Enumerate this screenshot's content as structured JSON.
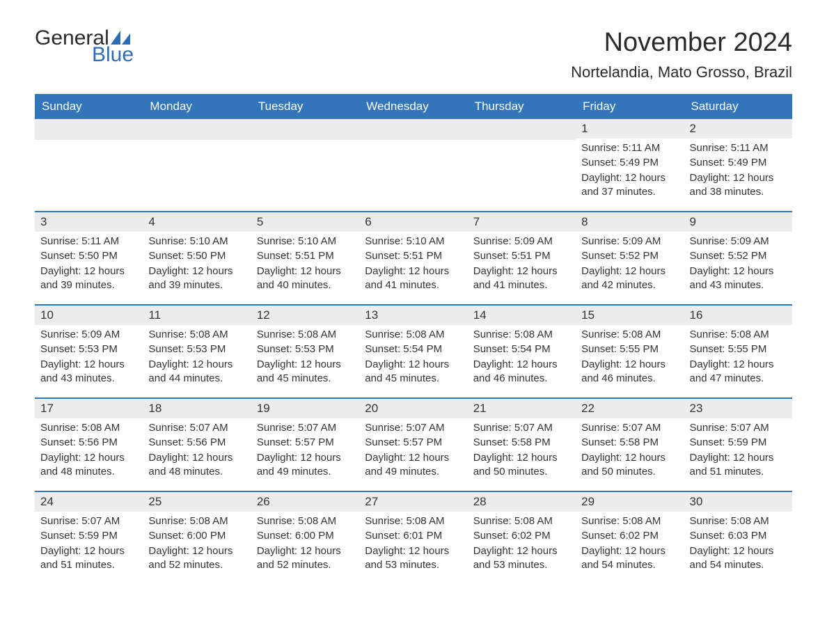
{
  "logo": {
    "text1": "General",
    "text2": "Blue"
  },
  "title": "November 2024",
  "location": "Nortelandia, Mato Grosso, Brazil",
  "colors": {
    "header_bg": "#3275bb",
    "header_text": "#ffffff",
    "daynum_bg": "#ececec",
    "border": "#3275bb",
    "logo_blue": "#2c6eb5",
    "text": "#333333",
    "background": "#ffffff"
  },
  "typography": {
    "title_fontsize": 38,
    "location_fontsize": 22,
    "dayheader_fontsize": 17,
    "daynum_fontsize": 17,
    "details_fontsize": 15,
    "logo_fontsize": 30
  },
  "day_headers": [
    "Sunday",
    "Monday",
    "Tuesday",
    "Wednesday",
    "Thursday",
    "Friday",
    "Saturday"
  ],
  "weeks": [
    [
      null,
      null,
      null,
      null,
      null,
      {
        "day": "1",
        "sunrise": "Sunrise: 5:11 AM",
        "sunset": "Sunset: 5:49 PM",
        "daylight": "Daylight: 12 hours and 37 minutes."
      },
      {
        "day": "2",
        "sunrise": "Sunrise: 5:11 AM",
        "sunset": "Sunset: 5:49 PM",
        "daylight": "Daylight: 12 hours and 38 minutes."
      }
    ],
    [
      {
        "day": "3",
        "sunrise": "Sunrise: 5:11 AM",
        "sunset": "Sunset: 5:50 PM",
        "daylight": "Daylight: 12 hours and 39 minutes."
      },
      {
        "day": "4",
        "sunrise": "Sunrise: 5:10 AM",
        "sunset": "Sunset: 5:50 PM",
        "daylight": "Daylight: 12 hours and 39 minutes."
      },
      {
        "day": "5",
        "sunrise": "Sunrise: 5:10 AM",
        "sunset": "Sunset: 5:51 PM",
        "daylight": "Daylight: 12 hours and 40 minutes."
      },
      {
        "day": "6",
        "sunrise": "Sunrise: 5:10 AM",
        "sunset": "Sunset: 5:51 PM",
        "daylight": "Daylight: 12 hours and 41 minutes."
      },
      {
        "day": "7",
        "sunrise": "Sunrise: 5:09 AM",
        "sunset": "Sunset: 5:51 PM",
        "daylight": "Daylight: 12 hours and 41 minutes."
      },
      {
        "day": "8",
        "sunrise": "Sunrise: 5:09 AM",
        "sunset": "Sunset: 5:52 PM",
        "daylight": "Daylight: 12 hours and 42 minutes."
      },
      {
        "day": "9",
        "sunrise": "Sunrise: 5:09 AM",
        "sunset": "Sunset: 5:52 PM",
        "daylight": "Daylight: 12 hours and 43 minutes."
      }
    ],
    [
      {
        "day": "10",
        "sunrise": "Sunrise: 5:09 AM",
        "sunset": "Sunset: 5:53 PM",
        "daylight": "Daylight: 12 hours and 43 minutes."
      },
      {
        "day": "11",
        "sunrise": "Sunrise: 5:08 AM",
        "sunset": "Sunset: 5:53 PM",
        "daylight": "Daylight: 12 hours and 44 minutes."
      },
      {
        "day": "12",
        "sunrise": "Sunrise: 5:08 AM",
        "sunset": "Sunset: 5:53 PM",
        "daylight": "Daylight: 12 hours and 45 minutes."
      },
      {
        "day": "13",
        "sunrise": "Sunrise: 5:08 AM",
        "sunset": "Sunset: 5:54 PM",
        "daylight": "Daylight: 12 hours and 45 minutes."
      },
      {
        "day": "14",
        "sunrise": "Sunrise: 5:08 AM",
        "sunset": "Sunset: 5:54 PM",
        "daylight": "Daylight: 12 hours and 46 minutes."
      },
      {
        "day": "15",
        "sunrise": "Sunrise: 5:08 AM",
        "sunset": "Sunset: 5:55 PM",
        "daylight": "Daylight: 12 hours and 46 minutes."
      },
      {
        "day": "16",
        "sunrise": "Sunrise: 5:08 AM",
        "sunset": "Sunset: 5:55 PM",
        "daylight": "Daylight: 12 hours and 47 minutes."
      }
    ],
    [
      {
        "day": "17",
        "sunrise": "Sunrise: 5:08 AM",
        "sunset": "Sunset: 5:56 PM",
        "daylight": "Daylight: 12 hours and 48 minutes."
      },
      {
        "day": "18",
        "sunrise": "Sunrise: 5:07 AM",
        "sunset": "Sunset: 5:56 PM",
        "daylight": "Daylight: 12 hours and 48 minutes."
      },
      {
        "day": "19",
        "sunrise": "Sunrise: 5:07 AM",
        "sunset": "Sunset: 5:57 PM",
        "daylight": "Daylight: 12 hours and 49 minutes."
      },
      {
        "day": "20",
        "sunrise": "Sunrise: 5:07 AM",
        "sunset": "Sunset: 5:57 PM",
        "daylight": "Daylight: 12 hours and 49 minutes."
      },
      {
        "day": "21",
        "sunrise": "Sunrise: 5:07 AM",
        "sunset": "Sunset: 5:58 PM",
        "daylight": "Daylight: 12 hours and 50 minutes."
      },
      {
        "day": "22",
        "sunrise": "Sunrise: 5:07 AM",
        "sunset": "Sunset: 5:58 PM",
        "daylight": "Daylight: 12 hours and 50 minutes."
      },
      {
        "day": "23",
        "sunrise": "Sunrise: 5:07 AM",
        "sunset": "Sunset: 5:59 PM",
        "daylight": "Daylight: 12 hours and 51 minutes."
      }
    ],
    [
      {
        "day": "24",
        "sunrise": "Sunrise: 5:07 AM",
        "sunset": "Sunset: 5:59 PM",
        "daylight": "Daylight: 12 hours and 51 minutes."
      },
      {
        "day": "25",
        "sunrise": "Sunrise: 5:08 AM",
        "sunset": "Sunset: 6:00 PM",
        "daylight": "Daylight: 12 hours and 52 minutes."
      },
      {
        "day": "26",
        "sunrise": "Sunrise: 5:08 AM",
        "sunset": "Sunset: 6:00 PM",
        "daylight": "Daylight: 12 hours and 52 minutes."
      },
      {
        "day": "27",
        "sunrise": "Sunrise: 5:08 AM",
        "sunset": "Sunset: 6:01 PM",
        "daylight": "Daylight: 12 hours and 53 minutes."
      },
      {
        "day": "28",
        "sunrise": "Sunrise: 5:08 AM",
        "sunset": "Sunset: 6:02 PM",
        "daylight": "Daylight: 12 hours and 53 minutes."
      },
      {
        "day": "29",
        "sunrise": "Sunrise: 5:08 AM",
        "sunset": "Sunset: 6:02 PM",
        "daylight": "Daylight: 12 hours and 54 minutes."
      },
      {
        "day": "30",
        "sunrise": "Sunrise: 5:08 AM",
        "sunset": "Sunset: 6:03 PM",
        "daylight": "Daylight: 12 hours and 54 minutes."
      }
    ]
  ]
}
